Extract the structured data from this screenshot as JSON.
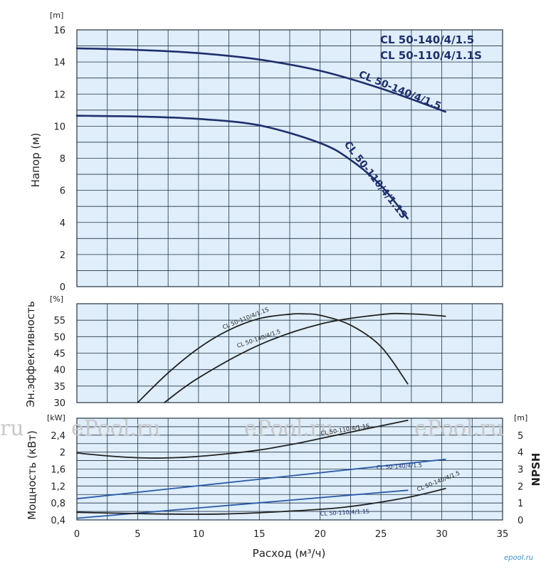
{
  "chart_data": [
    {
      "id": "head",
      "type": "line",
      "title": [
        "CL 50-140/4/1.5",
        "CL 50-110/4/1.1S"
      ],
      "ylabel": "Напор (м)",
      "unit": "[m]",
      "xlim": [
        0,
        35
      ],
      "ylim": [
        0,
        16
      ],
      "yticks": [
        "0",
        "2",
        "4",
        "6",
        "8",
        "10",
        "12",
        "14",
        "16"
      ],
      "grid": true,
      "series": [
        {
          "name": "CL 50-140/4/1.5",
          "color": "#1e2f6e",
          "x": [
            0,
            5,
            10,
            15,
            20,
            25,
            30.3
          ],
          "y": [
            14.85,
            14.75,
            14.55,
            14.15,
            13.45,
            12.35,
            10.9
          ]
        },
        {
          "name": "CL 50-110/4/1.1S",
          "color": "#1e2f6e",
          "x": [
            0,
            5,
            10,
            15,
            20,
            22.5,
            25,
            27.2
          ],
          "y": [
            10.65,
            10.6,
            10.45,
            10.05,
            8.95,
            7.9,
            6.3,
            4.25
          ]
        }
      ]
    },
    {
      "id": "efficiency",
      "type": "line",
      "ylabel": "Эн.эффективность",
      "unit": "[%]",
      "xlim": [
        0,
        35
      ],
      "ylim": [
        30,
        60
      ],
      "yticks": [
        "30",
        "35",
        "40",
        "45",
        "50",
        "55"
      ],
      "grid": true,
      "series": [
        {
          "name": "CL 50-110/4/1.1S",
          "color": "#222222",
          "x": [
            5,
            7.5,
            10,
            12.5,
            15,
            17.5,
            18.8,
            20,
            22.5,
            25,
            27.2
          ],
          "y": [
            30,
            39,
            46.5,
            52,
            55.5,
            56.8,
            56.9,
            56.5,
            53.5,
            47,
            35.7
          ]
        },
        {
          "name": "CL 50-140/4/1.5",
          "color": "#222222",
          "x": [
            7.2,
            10,
            15,
            20,
            25,
            27.5,
            30.3
          ],
          "y": [
            30,
            37.5,
            47.5,
            53.8,
            56.7,
            56.9,
            56.2
          ]
        }
      ]
    },
    {
      "id": "power",
      "type": "line",
      "ylabel": "Мощность (кВт)",
      "unit": "[kW]",
      "y2label": "NPSH",
      "unit2": "[m]",
      "xlabel": "Расход (м³/ч)",
      "xlim": [
        0,
        35
      ],
      "ylim": [
        0.4,
        2.8
      ],
      "yticks": [
        "0,4",
        "0,8",
        "1,2",
        "1,6",
        "2",
        "2,4"
      ],
      "y2lim": [
        0,
        6
      ],
      "y2ticks": [
        "0",
        "1",
        "2",
        "3",
        "4",
        "5"
      ],
      "xticks": [
        "0",
        "5",
        "10",
        "15",
        "20",
        "25",
        "30",
        "35"
      ],
      "grid": true,
      "series": [
        {
          "name": "CL 50-110/4/1.1S",
          "kind": "power",
          "color": "#222222",
          "x": [
            0,
            3,
            6,
            9,
            12,
            15,
            18,
            21,
            24,
            27.2
          ],
          "y": [
            1.98,
            1.9,
            1.86,
            1.88,
            1.95,
            2.05,
            2.2,
            2.38,
            2.56,
            2.75
          ]
        },
        {
          "name": "CL 50-140/4/1.5",
          "kind": "power",
          "color": "#2a5ba8",
          "x": [
            0,
            30.3
          ],
          "y": [
            0.9,
            1.83
          ]
        },
        {
          "name": "CL 50-110/4/1.1S",
          "kind": "npsh",
          "color": "#2a5ba8",
          "x": [
            0,
            27.2
          ],
          "y": [
            0.1,
            1.75
          ]
        },
        {
          "name": "CL 50-140/4/1.5",
          "kind": "npsh",
          "color": "#222222",
          "x": [
            0,
            7,
            12,
            17,
            22,
            27,
            30.3
          ],
          "y": [
            0.45,
            0.35,
            0.35,
            0.5,
            0.75,
            1.3,
            1.85
          ]
        }
      ]
    }
  ],
  "watermarks": [
    "ru",
    "ePool.ru",
    "ePool.ru",
    "ePool.ru"
  ],
  "brand": "epool.ru",
  "colors": {
    "plot_bg": "#dfeefa",
    "grid": "#223344",
    "curve_blue": "#1e2f6e"
  }
}
